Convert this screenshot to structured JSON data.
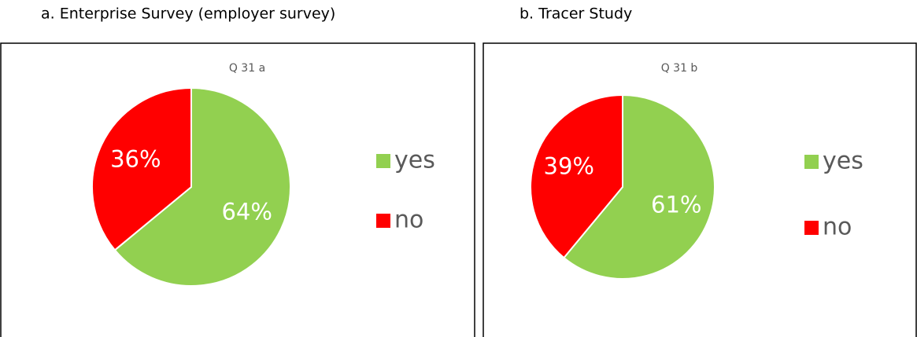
{
  "captions": [
    "a.   Enterprise Survey (employer survey)",
    "b. Tracer Study"
  ],
  "chart_data": [
    {
      "type": "pie",
      "title": "Q 31 a",
      "categories": [
        "yes",
        "no"
      ],
      "values": [
        64,
        36
      ],
      "value_labels": [
        "64%",
        "36%"
      ],
      "colors": [
        "#92d050",
        "#ff0000"
      ]
    },
    {
      "type": "pie",
      "title": "Q 31 b",
      "categories": [
        "yes",
        "no"
      ],
      "values": [
        61,
        39
      ],
      "value_labels": [
        "61%",
        "39%"
      ],
      "colors": [
        "#92d050",
        "#ff0000"
      ]
    }
  ]
}
